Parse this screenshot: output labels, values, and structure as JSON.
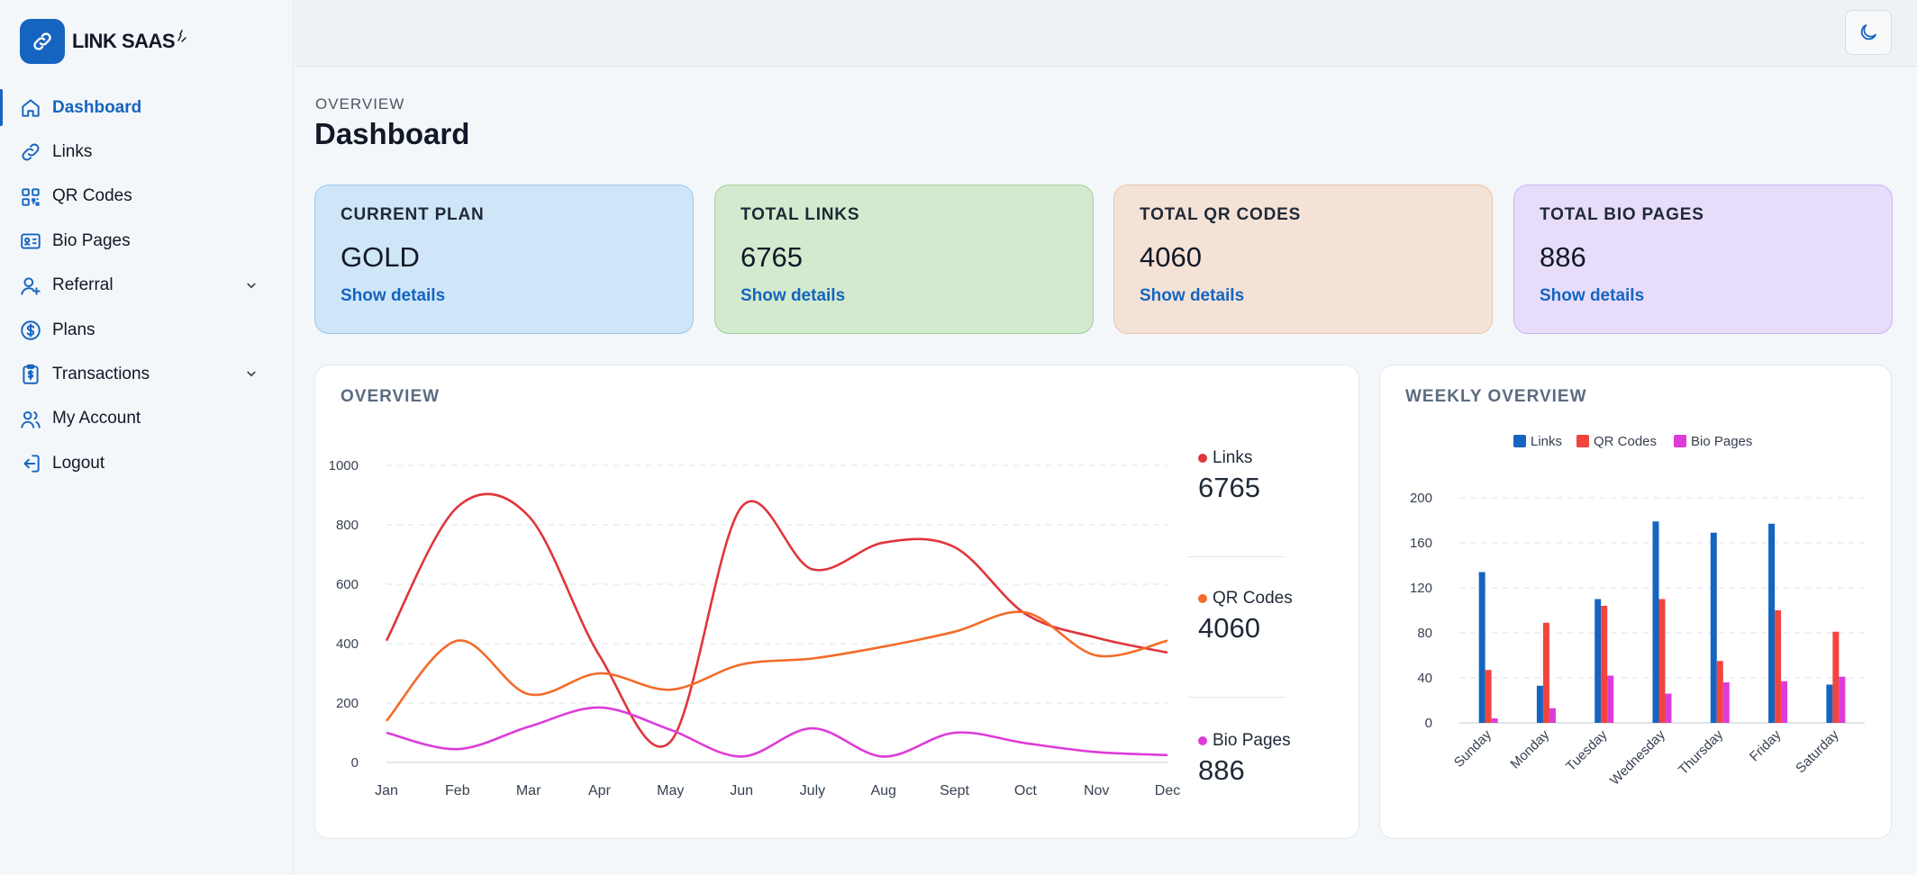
{
  "brand": {
    "name": "LINK SAAS"
  },
  "sidebar": {
    "items": [
      {
        "label": "Dashboard",
        "icon": "home-icon",
        "active": true
      },
      {
        "label": "Links",
        "icon": "link-icon"
      },
      {
        "label": "QR Codes",
        "icon": "qr-code-icon"
      },
      {
        "label": "Bio Pages",
        "icon": "id-card-icon"
      },
      {
        "label": "Referral",
        "icon": "user-plus-icon",
        "expandable": true
      },
      {
        "label": "Plans",
        "icon": "dollar-circle-icon"
      },
      {
        "label": "Transactions",
        "icon": "clipboard-dollar-icon",
        "expandable": true
      },
      {
        "label": "My Account",
        "icon": "users-icon"
      },
      {
        "label": "Logout",
        "icon": "logout-icon"
      }
    ]
  },
  "topbar": {
    "theme_icon": "moon-icon"
  },
  "header": {
    "kicker": "OVERVIEW",
    "title": "Dashboard"
  },
  "stats": [
    {
      "label": "CURRENT PLAN",
      "value": "GOLD",
      "link": "Show details",
      "bg": "#cfe6f8",
      "border": "#9dc7ea"
    },
    {
      "label": "TOTAL LINKS",
      "value": "6765",
      "link": "Show details",
      "bg": "#d3eace",
      "border": "#9fd19a"
    },
    {
      "label": "TOTAL QR CODES",
      "value": "4060",
      "link": "Show details",
      "bg": "#f4e2d6",
      "border": "#eac3a7"
    },
    {
      "label": "TOTAL BIO PAGES",
      "value": "886",
      "link": "Show details",
      "bg": "#e8dcfb",
      "border": "#c9b3f3"
    }
  ],
  "overview_panel": {
    "title": "OVERVIEW",
    "legend": [
      {
        "label": "Links",
        "value": "6765",
        "color": "#e0353b"
      },
      {
        "label": "QR Codes",
        "value": "4060",
        "color": "#f26c2a"
      },
      {
        "label": "Bio Pages",
        "value": "886",
        "color": "#de3bd9"
      }
    ]
  },
  "weekly_panel": {
    "title": "WEEKLY OVERVIEW"
  },
  "chart_data": [
    {
      "type": "line",
      "title": "OVERVIEW",
      "categories": [
        "Jan",
        "Feb",
        "Mar",
        "Apr",
        "May",
        "Jun",
        "July",
        "Aug",
        "Sept",
        "Oct",
        "Nov",
        "Dec"
      ],
      "ylim": [
        0,
        1000
      ],
      "yticks": [
        0,
        200,
        400,
        600,
        800,
        1000
      ],
      "grid": true,
      "legend": "right",
      "series": [
        {
          "name": "Links",
          "color": "#e0353b",
          "values": [
            410,
            860,
            830,
            360,
            70,
            860,
            650,
            740,
            725,
            500,
            420,
            370
          ]
        },
        {
          "name": "QR Codes",
          "color": "#f26c2a",
          "values": [
            140,
            410,
            230,
            300,
            245,
            330,
            350,
            390,
            440,
            505,
            360,
            410
          ]
        },
        {
          "name": "Bio Pages",
          "color": "#de3bd9",
          "values": [
            100,
            45,
            120,
            185,
            110,
            20,
            115,
            20,
            100,
            65,
            35,
            25
          ]
        }
      ]
    },
    {
      "type": "bar",
      "title": "WEEKLY OVERVIEW",
      "categories": [
        "Sunday",
        "Monday",
        "Tuesday",
        "Wednesday",
        "Thursday",
        "Friday",
        "Saturday"
      ],
      "ylim": [
        0,
        200
      ],
      "yticks": [
        0,
        40,
        80,
        120,
        160,
        200
      ],
      "grid": true,
      "legend": "top",
      "series": [
        {
          "name": "Links",
          "color": "#1565c0",
          "values": [
            134,
            33,
            110,
            179,
            169,
            177,
            34
          ]
        },
        {
          "name": "QR Codes",
          "color": "#f2443f",
          "values": [
            47,
            89,
            104,
            110,
            55,
            100,
            81
          ]
        },
        {
          "name": "Bio Pages",
          "color": "#de3bd9",
          "values": [
            4,
            13,
            42,
            26,
            36,
            37,
            41
          ]
        }
      ]
    }
  ]
}
